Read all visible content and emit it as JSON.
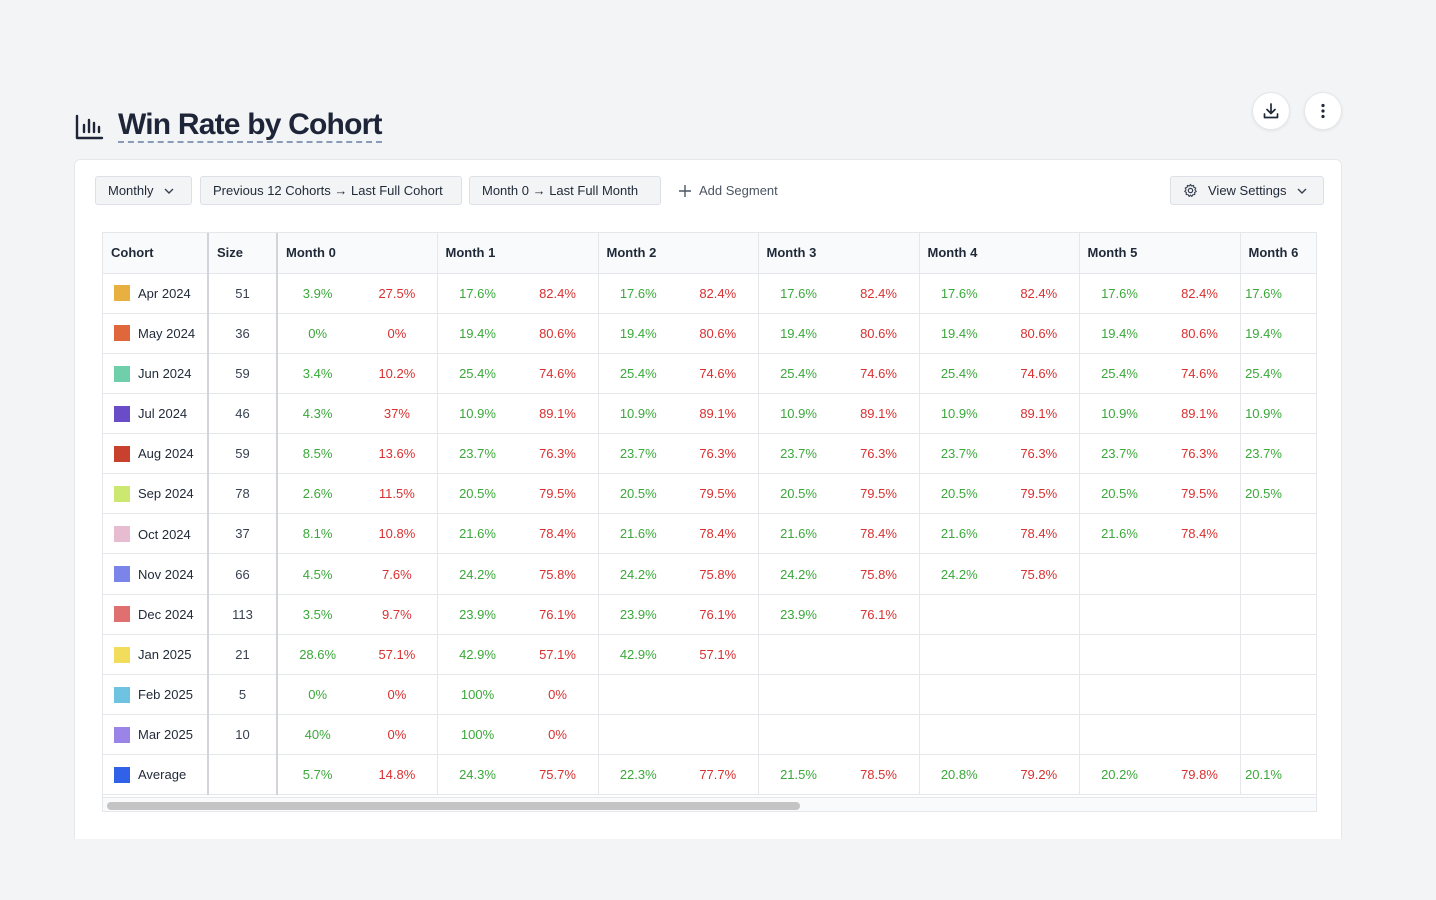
{
  "page": {
    "title": "Win Rate by Cohort"
  },
  "toolbar": {
    "granularity": "Monthly",
    "cohort_range": "Previous 12 Cohorts → Last Full Cohort",
    "month_range": "Month 0 → Last Full Month",
    "add_segment": "Add Segment",
    "view_settings": "View Settings"
  },
  "table": {
    "headers": [
      "Cohort",
      "Size",
      "Month 0",
      "Month 1",
      "Month 2",
      "Month 3",
      "Month 4",
      "Month 5",
      "Month 6"
    ],
    "rows": [
      {
        "cohort": "Apr 2024",
        "color": "#e8b040",
        "size": "51",
        "months": [
          [
            "3.9%",
            "27.5%"
          ],
          [
            "17.6%",
            "82.4%"
          ],
          [
            "17.6%",
            "82.4%"
          ],
          [
            "17.6%",
            "82.4%"
          ],
          [
            "17.6%",
            "82.4%"
          ],
          [
            "17.6%",
            "82.4%"
          ],
          [
            "17.6%",
            ""
          ]
        ]
      },
      {
        "cohort": "May 2024",
        "color": "#e0663c",
        "size": "36",
        "months": [
          [
            "0%",
            "0%"
          ],
          [
            "19.4%",
            "80.6%"
          ],
          [
            "19.4%",
            "80.6%"
          ],
          [
            "19.4%",
            "80.6%"
          ],
          [
            "19.4%",
            "80.6%"
          ],
          [
            "19.4%",
            "80.6%"
          ],
          [
            "19.4%",
            ""
          ]
        ]
      },
      {
        "cohort": "Jun 2024",
        "color": "#6fcfab",
        "size": "59",
        "months": [
          [
            "3.4%",
            "10.2%"
          ],
          [
            "25.4%",
            "74.6%"
          ],
          [
            "25.4%",
            "74.6%"
          ],
          [
            "25.4%",
            "74.6%"
          ],
          [
            "25.4%",
            "74.6%"
          ],
          [
            "25.4%",
            "74.6%"
          ],
          [
            "25.4%",
            ""
          ]
        ]
      },
      {
        "cohort": "Jul 2024",
        "color": "#6a4cc8",
        "size": "46",
        "months": [
          [
            "4.3%",
            "37%"
          ],
          [
            "10.9%",
            "89.1%"
          ],
          [
            "10.9%",
            "89.1%"
          ],
          [
            "10.9%",
            "89.1%"
          ],
          [
            "10.9%",
            "89.1%"
          ],
          [
            "10.9%",
            "89.1%"
          ],
          [
            "10.9%",
            ""
          ]
        ]
      },
      {
        "cohort": "Aug 2024",
        "color": "#c8402e",
        "size": "59",
        "months": [
          [
            "8.5%",
            "13.6%"
          ],
          [
            "23.7%",
            "76.3%"
          ],
          [
            "23.7%",
            "76.3%"
          ],
          [
            "23.7%",
            "76.3%"
          ],
          [
            "23.7%",
            "76.3%"
          ],
          [
            "23.7%",
            "76.3%"
          ],
          [
            "23.7%",
            ""
          ]
        ]
      },
      {
        "cohort": "Sep 2024",
        "color": "#cde870",
        "size": "78",
        "months": [
          [
            "2.6%",
            "11.5%"
          ],
          [
            "20.5%",
            "79.5%"
          ],
          [
            "20.5%",
            "79.5%"
          ],
          [
            "20.5%",
            "79.5%"
          ],
          [
            "20.5%",
            "79.5%"
          ],
          [
            "20.5%",
            "79.5%"
          ],
          [
            "20.5%",
            ""
          ]
        ]
      },
      {
        "cohort": "Oct 2024",
        "color": "#e8bcd0",
        "size": "37",
        "months": [
          [
            "8.1%",
            "10.8%"
          ],
          [
            "21.6%",
            "78.4%"
          ],
          [
            "21.6%",
            "78.4%"
          ],
          [
            "21.6%",
            "78.4%"
          ],
          [
            "21.6%",
            "78.4%"
          ],
          [
            "21.6%",
            "78.4%"
          ],
          [
            "",
            ""
          ]
        ]
      },
      {
        "cohort": "Nov 2024",
        "color": "#7b84e8",
        "size": "66",
        "months": [
          [
            "4.5%",
            "7.6%"
          ],
          [
            "24.2%",
            "75.8%"
          ],
          [
            "24.2%",
            "75.8%"
          ],
          [
            "24.2%",
            "75.8%"
          ],
          [
            "24.2%",
            "75.8%"
          ],
          [
            "",
            ""
          ],
          [
            "",
            ""
          ]
        ]
      },
      {
        "cohort": "Dec 2024",
        "color": "#e07070",
        "size": "113",
        "months": [
          [
            "3.5%",
            "9.7%"
          ],
          [
            "23.9%",
            "76.1%"
          ],
          [
            "23.9%",
            "76.1%"
          ],
          [
            "23.9%",
            "76.1%"
          ],
          [
            "",
            ""
          ],
          [
            "",
            ""
          ],
          [
            "",
            ""
          ]
        ]
      },
      {
        "cohort": "Jan 2025",
        "color": "#f2dc5c",
        "size": "21",
        "months": [
          [
            "28.6%",
            "57.1%"
          ],
          [
            "42.9%",
            "57.1%"
          ],
          [
            "42.9%",
            "57.1%"
          ],
          [
            "",
            ""
          ],
          [
            "",
            ""
          ],
          [
            "",
            ""
          ],
          [
            "",
            ""
          ]
        ]
      },
      {
        "cohort": "Feb 2025",
        "color": "#6ec4e0",
        "size": "5",
        "months": [
          [
            "0%",
            "0%"
          ],
          [
            "100%",
            "0%"
          ],
          [
            "",
            ""
          ],
          [
            "",
            ""
          ],
          [
            "",
            ""
          ],
          [
            "",
            ""
          ],
          [
            "",
            ""
          ]
        ]
      },
      {
        "cohort": "Mar 2025",
        "color": "#9a84e8",
        "size": "10",
        "months": [
          [
            "40%",
            "0%"
          ],
          [
            "100%",
            "0%"
          ],
          [
            "",
            ""
          ],
          [
            "",
            ""
          ],
          [
            "",
            ""
          ],
          [
            "",
            ""
          ],
          [
            "",
            ""
          ]
        ]
      },
      {
        "cohort": "Average",
        "color": "#2f62e8",
        "size": "",
        "months": [
          [
            "5.7%",
            "14.8%"
          ],
          [
            "24.3%",
            "75.7%"
          ],
          [
            "22.3%",
            "77.7%"
          ],
          [
            "21.5%",
            "78.5%"
          ],
          [
            "20.8%",
            "79.2%"
          ],
          [
            "20.2%",
            "79.8%"
          ],
          [
            "20.1%",
            ""
          ]
        ]
      }
    ]
  }
}
